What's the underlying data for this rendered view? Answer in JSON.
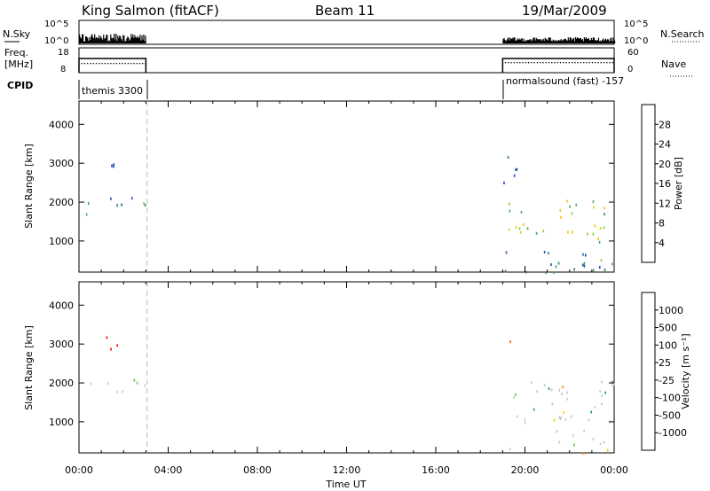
{
  "header": {
    "station": "King Salmon (fitACF)",
    "beam": "Beam 11",
    "date": "19/Mar/2009"
  },
  "strips": {
    "nsky_label": "N.Sky",
    "nsearch_label": "N.Search",
    "nsky_ticks": [
      "10^5",
      "10^0"
    ],
    "nsearch_ticks": [
      "10^5",
      "10^0"
    ],
    "freq_label_1": "Freq.",
    "freq_label_2": "[MHz]",
    "freq_ticks": [
      "18",
      "8"
    ],
    "nave_label": "Nave",
    "nave_ticks": [
      "60",
      "0"
    ],
    "cpid_label": "CPID",
    "cpid_segments": [
      {
        "start_h": 0.0,
        "end_h": 3.0,
        "label": "themis 3300"
      },
      {
        "start_h": 19.0,
        "end_h": 24.0,
        "label": "normalsound (fast) -157"
      }
    ]
  },
  "colors": {
    "power_scale": [
      "#2233dd",
      "#1f55a8",
      "#2e7d5a",
      "#4aa860",
      "#7fd03a",
      "#c8e020",
      "#f5c400",
      "#ff8c00",
      "#ee2200"
    ],
    "velocity_scale": [
      "#1c3fd6",
      "#2a67b0",
      "#2e9a64",
      "#58c83a",
      "#c8c8c8",
      "#f6d200",
      "#ff8c00",
      "#ff5a00",
      "#ee1100"
    ]
  },
  "chart_data": [
    {
      "type": "heatmap",
      "panel": "power",
      "xlabel": "Time UT",
      "ylabel": "Slant Range [km]",
      "colorbar_label": "Power [dB]",
      "xlim": [
        0,
        24
      ],
      "ylim": [
        200,
        4600
      ],
      "xticks": [
        "00:00",
        "04:00",
        "08:00",
        "12:00",
        "16:00",
        "20:00",
        "00:00"
      ],
      "yticks": [
        1000,
        2000,
        3000,
        4000
      ],
      "colorbar_ticks": [
        4,
        8,
        12,
        16,
        20,
        24,
        28
      ],
      "colorbar_range": [
        0,
        32
      ],
      "scatter_blobs": [
        {
          "t0": 0.0,
          "t1": 3.0,
          "r0": 1800,
          "r1": 2200,
          "level": 0.25
        },
        {
          "t0": 1.0,
          "t1": 1.7,
          "r0": 2700,
          "r1": 3400,
          "level": 0.2
        },
        {
          "t0": 0.0,
          "t1": 0.4,
          "r0": 1500,
          "r1": 2000,
          "level": 0.2
        },
        {
          "t0": 19.0,
          "t1": 24.0,
          "r0": 1000,
          "r1": 2100,
          "level": 0.55
        },
        {
          "t0": 19.0,
          "t1": 19.8,
          "r0": 2500,
          "r1": 3500,
          "level": 0.25
        },
        {
          "t0": 19.0,
          "t1": 24.0,
          "r0": 200,
          "r1": 800,
          "level": 0.2
        }
      ]
    },
    {
      "type": "heatmap",
      "panel": "velocity",
      "xlabel": "Time UT",
      "ylabel": "Slant Range [km]",
      "colorbar_label": "Velocity [m s⁻¹]",
      "xlim": [
        0,
        24
      ],
      "ylim": [
        200,
        4600
      ],
      "xticks": [
        "00:00",
        "04:00",
        "08:00",
        "12:00",
        "16:00",
        "20:00",
        "00:00"
      ],
      "yticks": [
        1000,
        2000,
        3000,
        4000
      ],
      "colorbar_ticks": [
        1000,
        500,
        100,
        25,
        -25,
        -100,
        -500,
        -1000
      ],
      "scatter_blobs": [
        {
          "t0": 0.0,
          "t1": 3.0,
          "r0": 1800,
          "r1": 2200,
          "level": 0.5
        },
        {
          "t0": 1.0,
          "t1": 1.7,
          "r0": 2900,
          "r1": 3400,
          "level": 0.95
        },
        {
          "t0": 19.0,
          "t1": 24.0,
          "r0": 1000,
          "r1": 2100,
          "level": 0.5
        },
        {
          "t0": 19.0,
          "t1": 19.6,
          "r0": 2900,
          "r1": 3400,
          "level": 0.85
        },
        {
          "t0": 19.0,
          "t1": 24.0,
          "r0": 200,
          "r1": 800,
          "level": 0.55
        }
      ]
    }
  ]
}
